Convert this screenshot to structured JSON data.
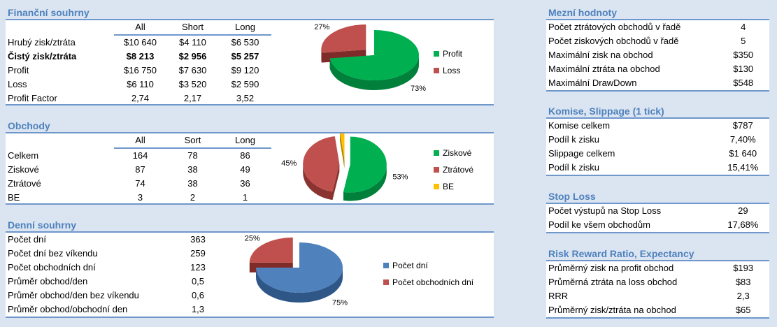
{
  "financni": {
    "title": "Finanční souhrny",
    "columns": [
      "All",
      "Short",
      "Long"
    ],
    "rows": [
      {
        "label": "Hrubý zisk/ztráta",
        "values": [
          "$10 640",
          "$4 110",
          "$6 530"
        ]
      },
      {
        "label": "Čistý zisk/ztráta",
        "values": [
          "$8 213",
          "$2 956",
          "$5 257"
        ],
        "bold": true
      },
      {
        "label": "Profit",
        "values": [
          "$16 750",
          "$7 630",
          "$9 120"
        ]
      },
      {
        "label": "Loss",
        "values": [
          "$6 110",
          "$3 520",
          "$2 590"
        ]
      },
      {
        "label": "Profit Factor",
        "values": [
          "2,74",
          "2,17",
          "3,52"
        ]
      }
    ]
  },
  "obchody": {
    "title": "Obchody",
    "columns": [
      "All",
      "Sort",
      "Long"
    ],
    "rows": [
      {
        "label": "Celkem",
        "values": [
          "164",
          "78",
          "86"
        ]
      },
      {
        "label": "Ziskové",
        "values": [
          "87",
          "38",
          "49"
        ]
      },
      {
        "label": "Ztrátové",
        "values": [
          "74",
          "38",
          "36"
        ]
      },
      {
        "label": "BE",
        "values": [
          "3",
          "2",
          "1"
        ]
      }
    ]
  },
  "denni": {
    "title": "Denní souhrny",
    "rows": [
      {
        "label": "Počet dní",
        "values": [
          "363"
        ]
      },
      {
        "label": "Počet dní bez víkendu",
        "values": [
          "259"
        ]
      },
      {
        "label": "Počet obchodních dní",
        "values": [
          "123"
        ]
      },
      {
        "label": "Průměr obchod/den",
        "values": [
          "0,5"
        ]
      },
      {
        "label": "Průměr obchod/den bez víkendu",
        "values": [
          "0,6"
        ]
      },
      {
        "label": "Průměr obchod/obchodní den",
        "values": [
          "1,3"
        ]
      }
    ]
  },
  "mezni": {
    "title": "Mezní hodnoty",
    "rows": [
      {
        "label": "Počet ztrátových obchodů v řadě",
        "values": [
          "4"
        ]
      },
      {
        "label": "Počet ziskových obchodů v řadě",
        "values": [
          "5"
        ]
      },
      {
        "label": "Maximální zisk na obchod",
        "values": [
          "$350"
        ]
      },
      {
        "label": "Maximální ztráta na obchod",
        "values": [
          "$130"
        ]
      },
      {
        "label": "Maximální DrawDown",
        "values": [
          "$548"
        ]
      }
    ]
  },
  "komise": {
    "title": "Komise, Slippage (1 tick)",
    "rows": [
      {
        "label": "Komise celkem",
        "values": [
          "$787"
        ]
      },
      {
        "label": "Podíl k zisku",
        "values": [
          "7,40%"
        ]
      },
      {
        "label": "Slippage celkem",
        "values": [
          "$1 640"
        ]
      },
      {
        "label": "Podíl k zisku",
        "values": [
          "15,41%"
        ]
      }
    ]
  },
  "stoploss": {
    "title": "Stop Loss",
    "rows": [
      {
        "label": "Počet výstupů na Stop Loss",
        "values": [
          "29"
        ]
      },
      {
        "label": "Podíl ke všem obchodům",
        "values": [
          "17,68%"
        ]
      }
    ]
  },
  "rrr": {
    "title": "Risk Reward Ratio, Expectancy",
    "rows": [
      {
        "label": "Průměrný zisk na profit obchod",
        "values": [
          "$193"
        ]
      },
      {
        "label": "Průměrná ztráta na loss obchod",
        "values": [
          "$83"
        ]
      },
      {
        "label": "RRR",
        "values": [
          "2,3"
        ]
      },
      {
        "label": "Průměrný zisk/ztráta na obchod",
        "values": [
          "$65"
        ]
      }
    ]
  },
  "chart_data": [
    {
      "type": "pie",
      "title": "",
      "slices": [
        {
          "name": "Profit",
          "value": 73,
          "label": "73%",
          "color": "#00b050",
          "side": "#00803a"
        },
        {
          "name": "Loss",
          "value": 27,
          "label": "27%",
          "color": "#c0504d",
          "side": "#7e2b29",
          "explode": true
        }
      ],
      "legend": "right"
    },
    {
      "type": "pie",
      "title": "",
      "slices": [
        {
          "name": "Ziskové",
          "value": 53,
          "label": "53%",
          "color": "#00b050",
          "side": "#00803a",
          "explode": true
        },
        {
          "name": "Ztrátové",
          "value": 45,
          "label": "45%",
          "color": "#c0504d",
          "side": "#8b3330",
          "explode": true
        },
        {
          "name": "BE",
          "value": 2,
          "label": "2%",
          "color": "#ffc000",
          "side": "#b08400",
          "explode": true
        }
      ],
      "legend": "right"
    },
    {
      "type": "pie",
      "title": "",
      "slices": [
        {
          "name": "Počet dní",
          "value": 75,
          "label": "75%",
          "color": "#4f81bd",
          "side": "#2e5788"
        },
        {
          "name": "Počet obchodních dní",
          "value": 25,
          "label": "25%",
          "color": "#c0504d",
          "side": "#7e2b29",
          "explode": true
        }
      ],
      "legend": "right"
    }
  ]
}
